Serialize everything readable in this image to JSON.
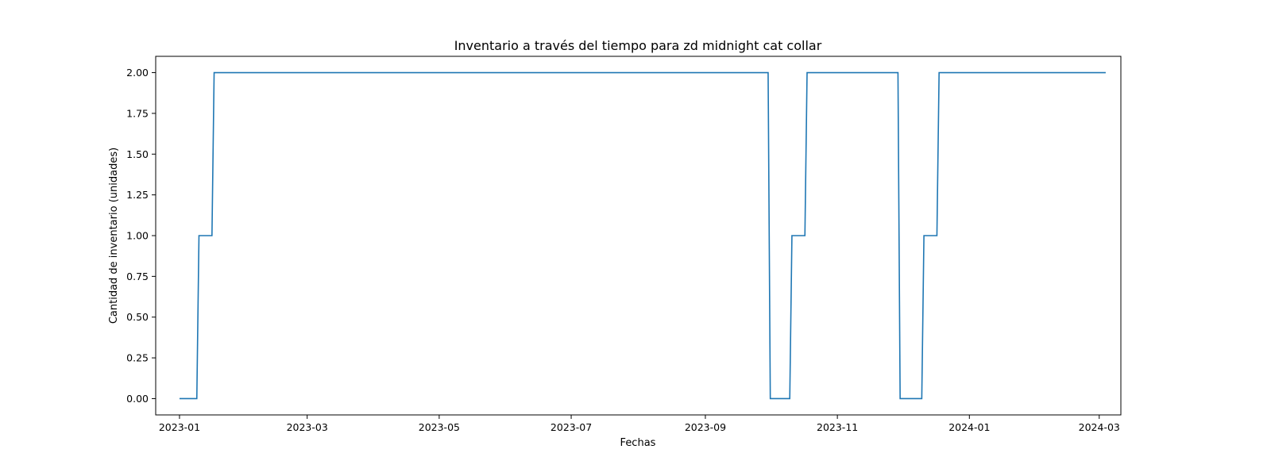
{
  "chart_data": {
    "type": "line",
    "title": "Inventario a través del tiempo para zd midnight cat collar",
    "xlabel": "Fechas",
    "ylabel": "Cantidad de inventario (unidades)",
    "xlim": [
      "2022-12-21",
      "2024-03-11"
    ],
    "ylim": [
      -0.1,
      2.1
    ],
    "grid": false,
    "x_ticks": [
      {
        "date": "2023-01-01",
        "label": "2023-01"
      },
      {
        "date": "2023-03-01",
        "label": "2023-03"
      },
      {
        "date": "2023-05-01",
        "label": "2023-05"
      },
      {
        "date": "2023-07-01",
        "label": "2023-07"
      },
      {
        "date": "2023-09-01",
        "label": "2023-09"
      },
      {
        "date": "2023-11-01",
        "label": "2023-11"
      },
      {
        "date": "2024-01-01",
        "label": "2024-01"
      },
      {
        "date": "2024-03-01",
        "label": "2024-03"
      }
    ],
    "y_ticks": [
      {
        "value": 0.0,
        "label": "0.00"
      },
      {
        "value": 0.25,
        "label": "0.25"
      },
      {
        "value": 0.5,
        "label": "0.50"
      },
      {
        "value": 0.75,
        "label": "0.75"
      },
      {
        "value": 1.0,
        "label": "1.00"
      },
      {
        "value": 1.25,
        "label": "1.25"
      },
      {
        "value": 1.5,
        "label": "1.50"
      },
      {
        "value": 1.75,
        "label": "1.75"
      },
      {
        "value": 2.0,
        "label": "2.00"
      }
    ],
    "series": [
      {
        "color": "#1f77b4",
        "x": [
          "2023-01-01",
          "2023-01-09",
          "2023-01-10",
          "2023-01-16",
          "2023-01-17",
          "2023-09-30",
          "2023-10-01",
          "2023-10-10",
          "2023-10-11",
          "2023-10-17",
          "2023-10-18",
          "2023-11-29",
          "2023-11-30",
          "2023-12-10",
          "2023-12-11",
          "2023-12-17",
          "2023-12-18",
          "2024-03-04"
        ],
        "y": [
          0,
          0,
          1,
          1,
          2,
          2,
          0,
          0,
          1,
          1,
          2,
          2,
          0,
          0,
          1,
          1,
          2,
          2
        ]
      }
    ]
  }
}
